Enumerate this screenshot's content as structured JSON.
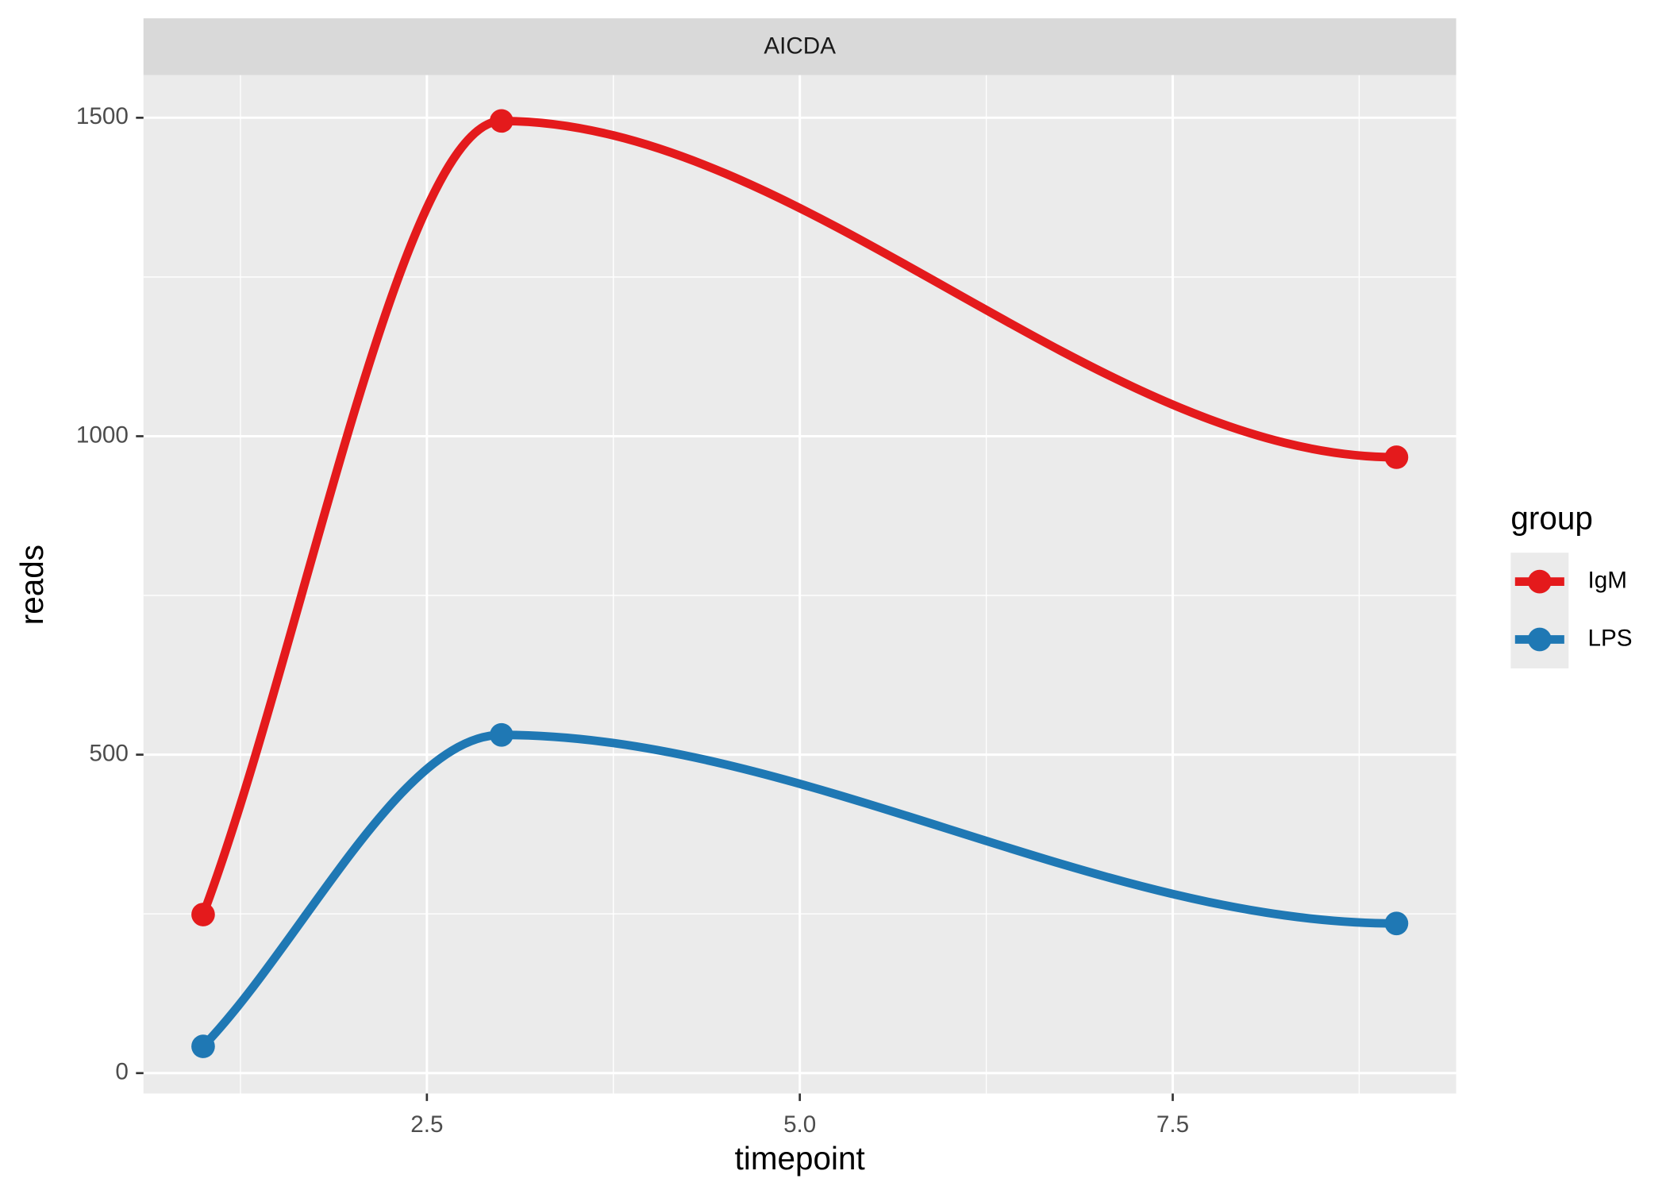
{
  "chart_data": {
    "type": "line",
    "title": "AICDA",
    "x_label": "timepoint",
    "y_label": "reads",
    "legend_title": "group",
    "x": [
      1,
      3,
      9
    ],
    "series": [
      {
        "name": "IgM",
        "color": "#e41a1c",
        "values": [
          249,
          1495,
          967
        ]
      },
      {
        "name": "LPS",
        "color": "#1f78b4",
        "values": [
          42,
          531,
          235
        ]
      }
    ],
    "xlim": [
      0.6,
      9.4
    ],
    "ylim": [
      -32,
      1567
    ],
    "xticks": [
      2.5,
      {
        "value": 5,
        "label": "5.0"
      },
      7.5
    ],
    "yticks": [
      0,
      500,
      1000,
      1500
    ],
    "grid": true,
    "legend": "right"
  }
}
